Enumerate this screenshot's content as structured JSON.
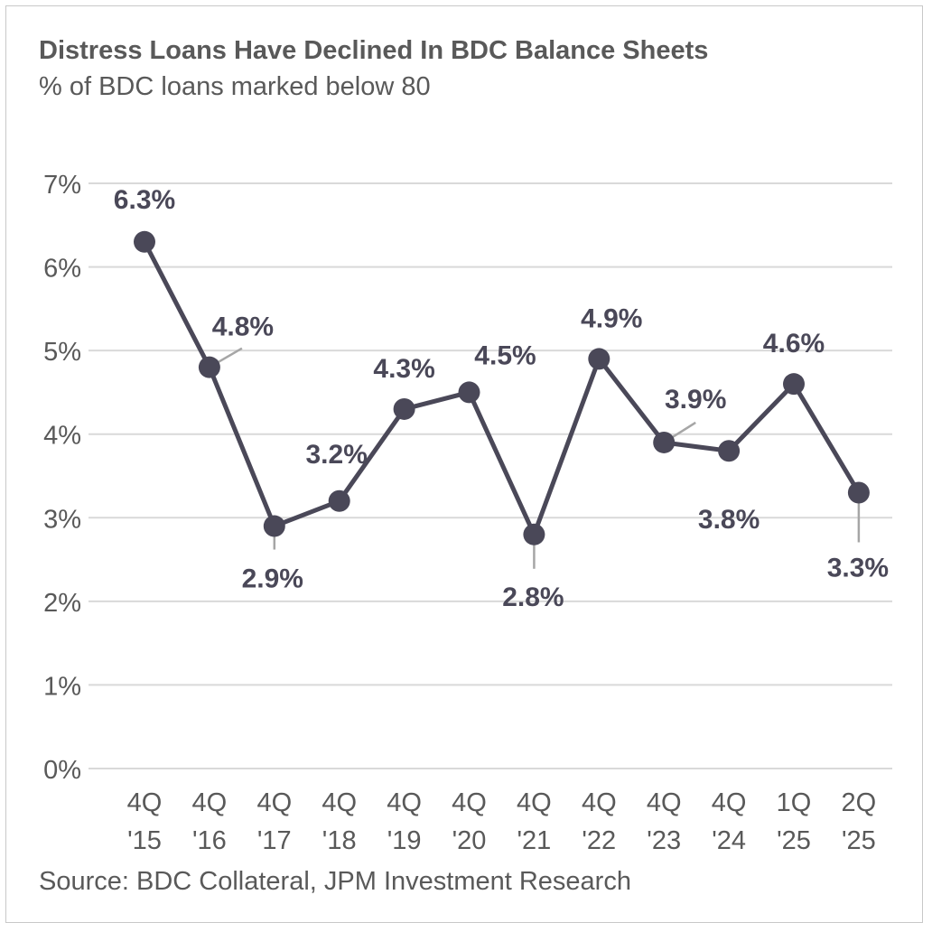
{
  "chart_data": {
    "type": "line",
    "title": "Distress Loans Have Declined In BDC Balance Sheets",
    "subtitle": "% of BDC loans marked below 80",
    "source": "Source: BDC Collateral, JPM Investment Research",
    "categories": [
      [
        "4Q",
        "'15"
      ],
      [
        "4Q",
        "'16"
      ],
      [
        "4Q",
        "'17"
      ],
      [
        "4Q",
        "'18"
      ],
      [
        "4Q",
        "'19"
      ],
      [
        "4Q",
        "'20"
      ],
      [
        "4Q",
        "'21"
      ],
      [
        "4Q",
        "'22"
      ],
      [
        "4Q",
        "'23"
      ],
      [
        "4Q",
        "'24"
      ],
      [
        "1Q",
        "'25"
      ],
      [
        "2Q",
        "'25"
      ]
    ],
    "values": [
      6.3,
      4.8,
      2.9,
      3.2,
      4.3,
      4.5,
      2.8,
      4.9,
      3.9,
      3.8,
      4.6,
      3.3
    ],
    "data_labels": [
      "6.3%",
      "4.8%",
      "2.9%",
      "3.2%",
      "4.3%",
      "4.5%",
      "2.8%",
      "4.9%",
      "3.9%",
      "3.8%",
      "4.6%",
      "3.3%"
    ],
    "yticks": [
      "0%",
      "1%",
      "2%",
      "3%",
      "4%",
      "5%",
      "6%",
      "7%"
    ],
    "ylim": [
      0,
      7
    ],
    "grid": true,
    "colors": {
      "line": "#4a4858",
      "grid": "#d9d9d9",
      "text": "#595959",
      "leader": "#a6a6a6"
    }
  }
}
